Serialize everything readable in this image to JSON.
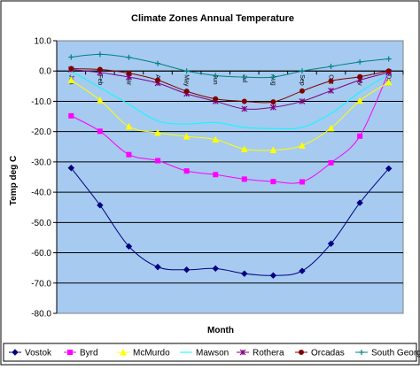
{
  "chart_data": {
    "type": "line",
    "title": "Climate Zones Annual Temperature",
    "xlabel": "Month",
    "ylabel": "Temp deg C",
    "categories": [
      "Jan",
      "Feb",
      "Mar",
      "Apr",
      "May",
      "Jun",
      "Jul",
      "Aug",
      "Sep",
      "Oct",
      "Nov",
      "Dec"
    ],
    "ylim": [
      -80,
      10
    ],
    "ytick_step": 10,
    "ytick_labels": [
      "10.0",
      "0.0",
      "-10.0",
      "-20.0",
      "-30.0",
      "-40.0",
      "-50.0",
      "-60.0",
      "-70.0",
      "-80.0"
    ],
    "grid": "horizontal",
    "plot_background": "#a6caf0",
    "legend_position": "bottom",
    "series": [
      {
        "name": "Vostok",
        "color": "#000080",
        "marker": "diamond",
        "values": [
          -32.0,
          -44.3,
          -57.9,
          -64.7,
          -65.6,
          -65.2,
          -66.9,
          -67.5,
          -66.0,
          -57.0,
          -43.5,
          -32.2
        ]
      },
      {
        "name": "Byrd",
        "color": "#ff00ff",
        "marker": "square",
        "values": [
          -14.8,
          -19.9,
          -27.6,
          -29.6,
          -33.0,
          -34.2,
          -35.7,
          -36.5,
          -36.6,
          -30.3,
          -21.5,
          -0.3
        ]
      },
      {
        "name": "McMurdo",
        "color": "#ffff00",
        "marker": "triangle",
        "values": [
          -3.0,
          -9.6,
          -18.3,
          -20.4,
          -21.6,
          -22.6,
          -25.8,
          -26.1,
          -24.6,
          -18.9,
          -9.8,
          -3.7
        ]
      },
      {
        "name": "Mawson",
        "color": "#00ffff",
        "marker": "none",
        "values": [
          0.0,
          -5.5,
          -11.0,
          -16.5,
          -17.5,
          -17.0,
          -18.6,
          -19.0,
          -18.6,
          -14.0,
          -7.0,
          -1.0
        ]
      },
      {
        "name": "Rothera",
        "color": "#800080",
        "marker": "star",
        "values": [
          0.5,
          -0.5,
          -2.0,
          -4.0,
          -7.5,
          -10.0,
          -12.5,
          -12.0,
          -10.0,
          -6.5,
          -3.0,
          -0.5
        ]
      },
      {
        "name": "Orcadas",
        "color": "#800000",
        "marker": "circle",
        "values": [
          0.8,
          0.5,
          -0.7,
          -3.0,
          -6.7,
          -9.2,
          -10.0,
          -10.2,
          -6.6,
          -3.3,
          -1.9,
          0.0
        ]
      },
      {
        "name": "South Georgia",
        "color": "#008080",
        "marker": "plus",
        "values": [
          4.6,
          5.5,
          4.5,
          2.5,
          0.0,
          -1.5,
          -2.0,
          -2.0,
          0.0,
          1.5,
          3.0,
          4.0
        ]
      }
    ]
  }
}
